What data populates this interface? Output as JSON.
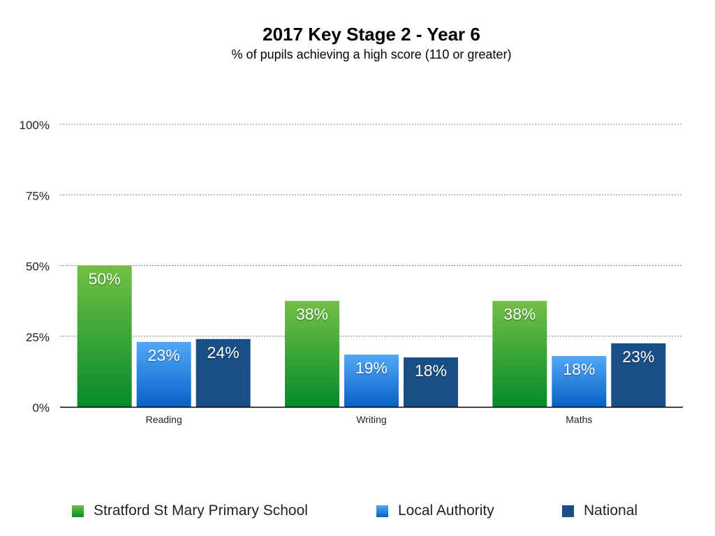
{
  "chart_data": {
    "type": "bar",
    "title": "2017 Key Stage 2 - Year 6",
    "subtitle": "% of pupils achieving a high score (110 or greater)",
    "xlabel": "",
    "ylabel": "",
    "ylim": [
      0,
      100
    ],
    "yticks": [
      0,
      25,
      50,
      75,
      100
    ],
    "ytick_labels": [
      "0%",
      "25%",
      "50%",
      "75%",
      "100%"
    ],
    "grid": true,
    "legend_position": "bottom",
    "categories": [
      "Reading",
      "Writing",
      "Maths"
    ],
    "series": [
      {
        "name": "Stratford St Mary Primary School",
        "values": [
          50,
          37.5,
          37.5
        ],
        "labels": [
          "50%",
          "38%",
          "38%"
        ],
        "color_top": "#72c044",
        "color_bottom": "#068a2c"
      },
      {
        "name": "Local Authority",
        "values": [
          23,
          18.5,
          18
        ],
        "labels": [
          "23%",
          "19%",
          "18%"
        ],
        "color_top": "#52a8f7",
        "color_bottom": "#0862c8"
      },
      {
        "name": "National",
        "values": [
          24,
          17.5,
          22.5
        ],
        "labels": [
          "24%",
          "18%",
          "23%"
        ],
        "color_top": "#1a4f85",
        "color_bottom": "#1a4f85"
      }
    ]
  }
}
